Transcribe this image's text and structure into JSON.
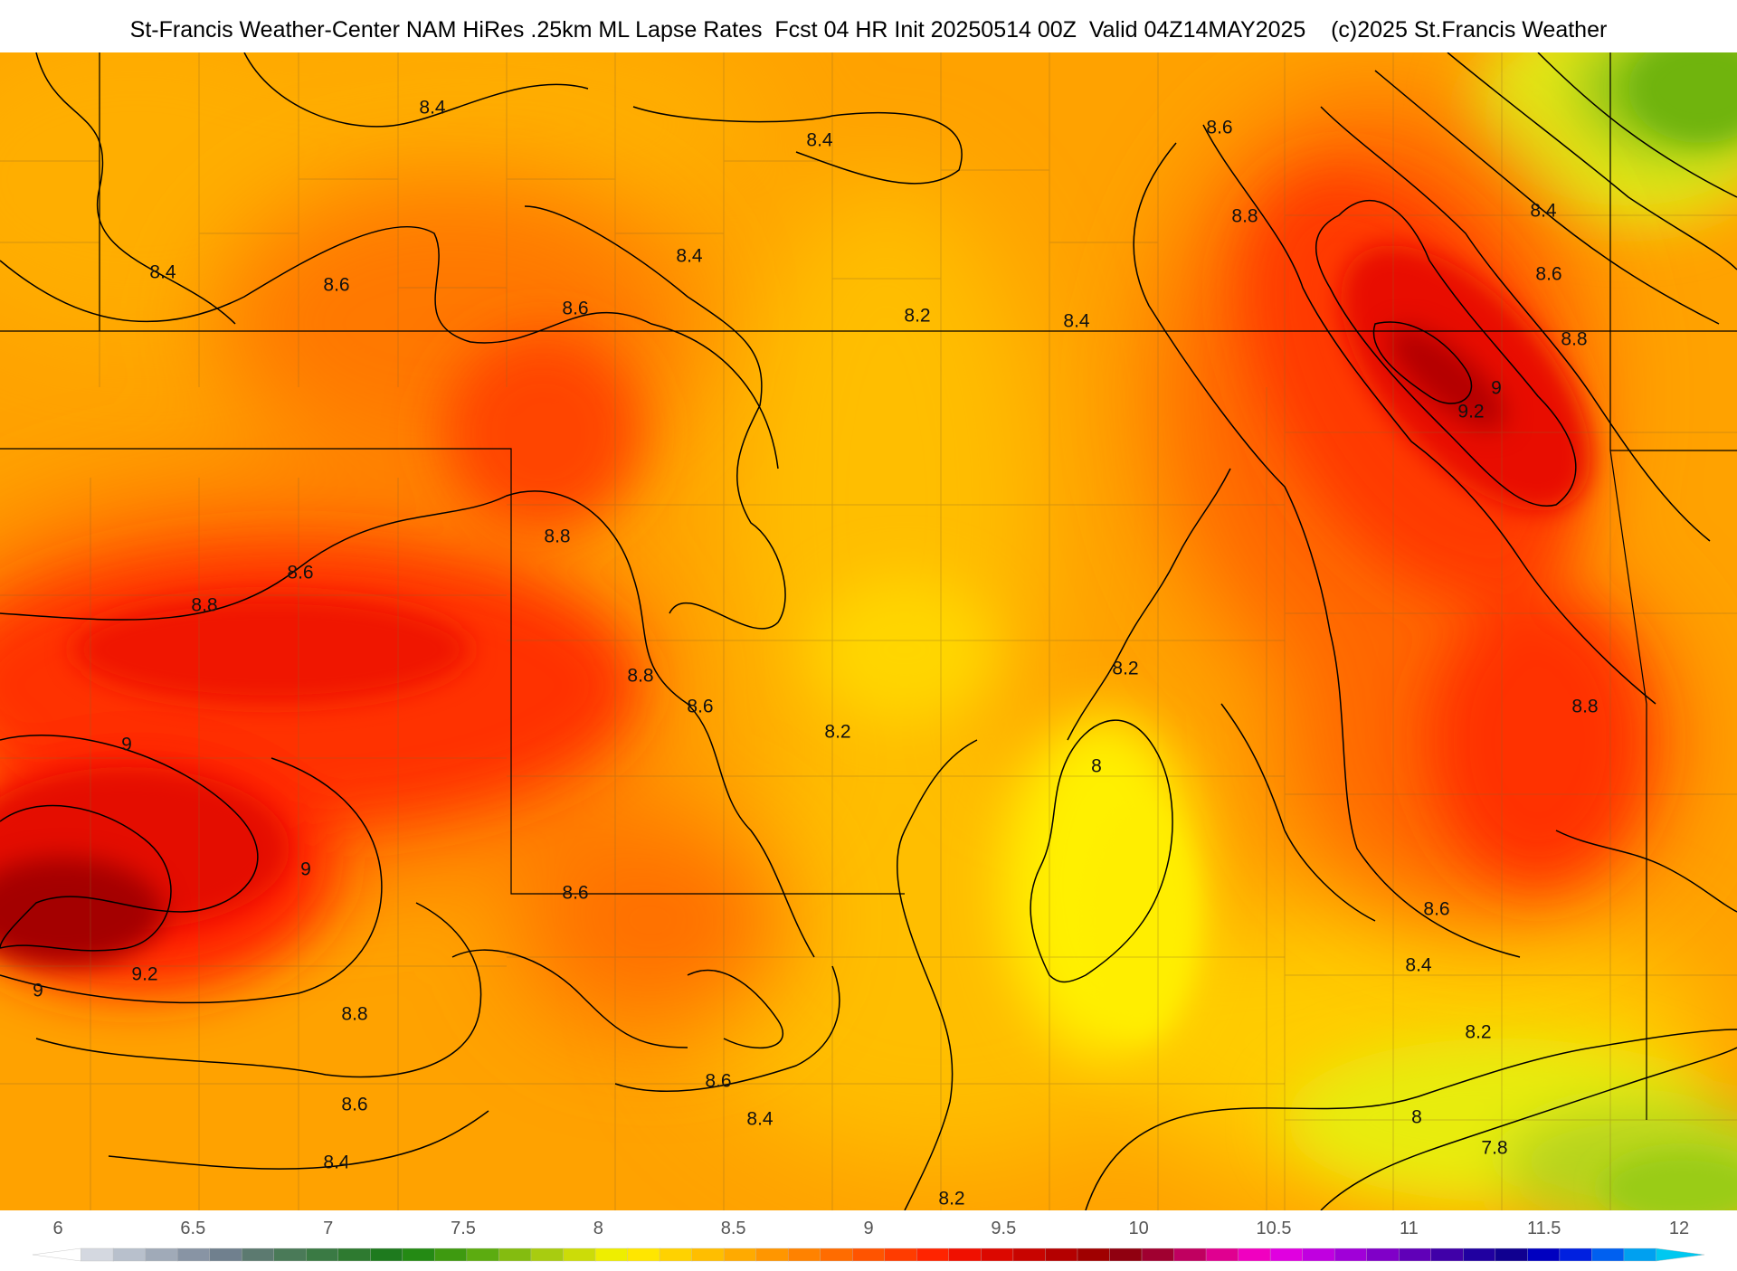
{
  "title": "St-Francis Weather-Center NAM HiRes .25km ML Lapse Rates  Fcst 04 HR Init 20250514 00Z  Valid 04Z14MAY2025    (c)2025 St.Francis Weather",
  "contour_labels": [
    "7.8",
    "8",
    "8.2",
    "8.4",
    "8.6",
    "8.8",
    "9",
    "9.2"
  ],
  "colorbar": {
    "ticks": [
      "6",
      "6.5",
      "7",
      "7.5",
      "8",
      "8.5",
      "9",
      "9.5",
      "10",
      "10.5",
      "11",
      "11.5",
      "12"
    ],
    "colors": [
      "#ffffff",
      "#d4d8e0",
      "#b8c0cc",
      "#a0aab8",
      "#8894a4",
      "#70808e",
      "#5c7a70",
      "#4a7a58",
      "#3a7a44",
      "#2e7a30",
      "#1e7a1e",
      "#248a14",
      "#3e9a10",
      "#5cac10",
      "#84bc10",
      "#a8cc10",
      "#ccdc08",
      "#eeee00",
      "#ffe600",
      "#ffd200",
      "#ffbe00",
      "#ffaa00",
      "#ff9600",
      "#ff8200",
      "#ff6c00",
      "#ff5400",
      "#ff3c00",
      "#ff2400",
      "#f01000",
      "#dc0800",
      "#c80400",
      "#b40000",
      "#a00000",
      "#900010",
      "#a00030",
      "#c00060",
      "#e00090",
      "#f000c0",
      "#e000e0",
      "#c000e0",
      "#a000d8",
      "#8000c8",
      "#6000b8",
      "#4000a8",
      "#2000a0",
      "#100090",
      "#0000c0",
      "#0020e0",
      "#0060f0",
      "#00a0f0",
      "#00c8f0"
    ]
  },
  "colors": {
    "border": "#000000",
    "county": "#7a5a20",
    "contour": "#000000"
  }
}
